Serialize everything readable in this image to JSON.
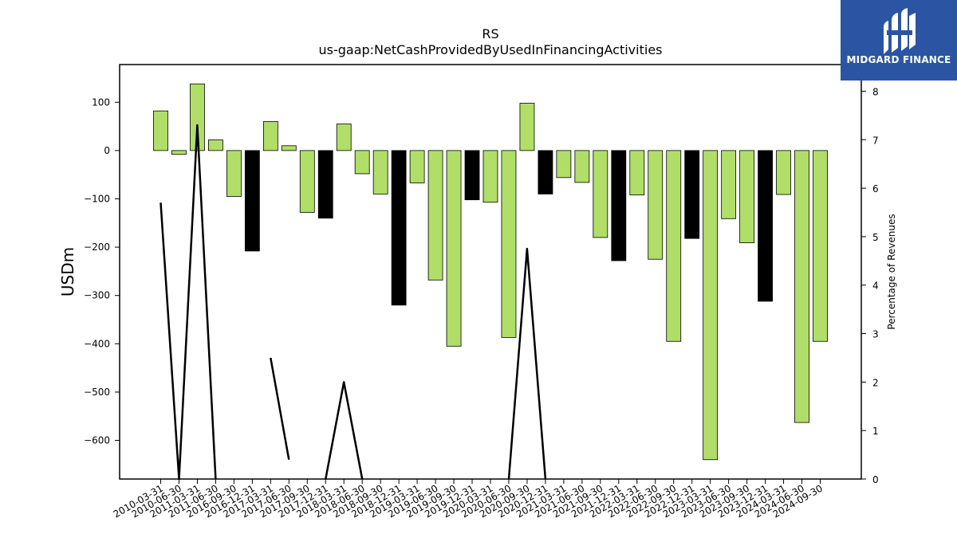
{
  "chart_data": {
    "type": "bar",
    "title": "RS",
    "subtitle": "us-gaap:NetCashProvidedByUsedInFinancingActivities",
    "ylabel": "USDm",
    "y2label": "Percentage of Revenues",
    "ylim": [
      -680,
      178
    ],
    "y2lim": [
      0,
      8.55
    ],
    "yticks": [
      100,
      0,
      -100,
      -200,
      -300,
      -400,
      -500,
      -600
    ],
    "yticks_labels": [
      "100",
      "0",
      "−100",
      "−200",
      "−300",
      "−400",
      "−500",
      "−600"
    ],
    "y2ticks": [
      0,
      1,
      2,
      3,
      4,
      5,
      6,
      7,
      8
    ],
    "grid": false,
    "categories": [
      "2010-03-31",
      "2010-06-30",
      "2011-03-31",
      "2011-06-30",
      "2016-09-30",
      "2016-12-31",
      "2017-03-31",
      "2017-06-30",
      "2017-09-30",
      "2017-12-31",
      "2018-03-31",
      "2018-06-30",
      "2018-09-30",
      "2018-12-31",
      "2019-03-31",
      "2019-06-30",
      "2019-09-30",
      "2019-12-31",
      "2020-03-31",
      "2020-06-30",
      "2020-09-30",
      "2020-12-31",
      "2021-03-31",
      "2021-06-30",
      "2021-09-30",
      "2021-12-31",
      "2022-03-31",
      "2022-06-30",
      "2022-09-30",
      "2022-12-31",
      "2023-03-31",
      "2023-06-30",
      "2023-09-30",
      "2023-12-31",
      "2024-03-31",
      "2024-06-30",
      "2024-09-30"
    ],
    "series": [
      {
        "type": "bar",
        "values": [
          82,
          -8,
          138,
          22,
          -95,
          -208,
          60,
          10,
          -128,
          -140,
          55,
          -48,
          -90,
          -320,
          -67,
          -268,
          -405,
          -102,
          -107,
          -387,
          98,
          -90,
          -56,
          -66,
          -180,
          -228,
          -92,
          -225,
          -395,
          -182,
          -640,
          -141,
          -191,
          -312,
          -91,
          -563,
          -395
        ],
        "highlight": [
          false,
          false,
          false,
          false,
          false,
          true,
          false,
          false,
          false,
          true,
          false,
          false,
          false,
          true,
          false,
          false,
          false,
          true,
          false,
          false,
          false,
          true,
          false,
          false,
          false,
          true,
          false,
          false,
          false,
          true,
          false,
          false,
          false,
          true,
          false,
          false,
          false
        ]
      },
      {
        "type": "line",
        "values": [
          5.7,
          0,
          7.3,
          0,
          null,
          null,
          2.5,
          0.4,
          null,
          0,
          2.0,
          0,
          null,
          null,
          null,
          null,
          null,
          null,
          null,
          0,
          4.75,
          0,
          null,
          null,
          null,
          null,
          null,
          null,
          null,
          null,
          null,
          null,
          null,
          null,
          null,
          null,
          null
        ]
      }
    ],
    "colors": {
      "bar": "#b0de68",
      "bar_highlight": "#000000",
      "bar_edge": "#000000",
      "line": "#000000",
      "logo_bg": "#2b55a3"
    }
  },
  "logo": {
    "text": "MIDGARD FINANCE",
    "icon": "midgard-logo-icon"
  }
}
